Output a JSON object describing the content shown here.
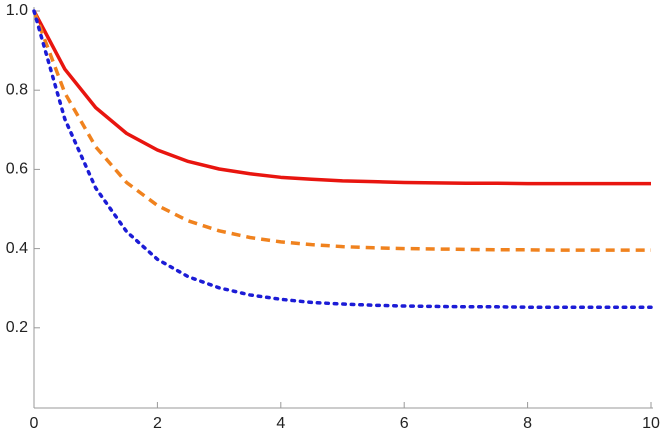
{
  "chart_data": {
    "type": "line",
    "x": [
      0,
      0.5,
      1,
      1.5,
      2,
      2.5,
      3,
      3.5,
      4,
      4.5,
      5,
      5.5,
      6,
      6.5,
      7,
      7.5,
      8,
      8.5,
      9,
      9.5,
      10
    ],
    "series": [
      {
        "color": "#e8150f",
        "linestyle": "solid",
        "values": [
          1.0,
          0.853,
          0.756,
          0.691,
          0.649,
          0.62,
          0.601,
          0.589,
          0.58,
          0.575,
          0.571,
          0.569,
          0.567,
          0.566,
          0.565,
          0.565,
          0.564,
          0.564,
          0.564,
          0.564,
          0.564
        ]
      },
      {
        "color": "#f0821e",
        "linestyle": "dashed",
        "values": [
          1.0,
          0.793,
          0.657,
          0.567,
          0.509,
          0.47,
          0.445,
          0.428,
          0.417,
          0.41,
          0.405,
          0.402,
          0.4,
          0.399,
          0.398,
          0.397,
          0.397,
          0.396,
          0.396,
          0.396,
          0.396
        ]
      },
      {
        "color": "#1c1cd6",
        "linestyle": "dotted",
        "values": [
          1.0,
          0.727,
          0.553,
          0.443,
          0.373,
          0.329,
          0.301,
          0.283,
          0.272,
          0.264,
          0.26,
          0.257,
          0.255,
          0.254,
          0.253,
          0.253,
          0.252,
          0.252,
          0.252,
          0.252,
          0.252
        ]
      }
    ],
    "xlim": [
      0,
      10
    ],
    "xticks": [
      0,
      2,
      4,
      6,
      8,
      10
    ],
    "ylim": [
      0,
      1
    ],
    "yticks": [
      0.2,
      0.4,
      0.6,
      0.8,
      {
        "value": 1,
        "label": "1.0"
      }
    ],
    "grid": false
  }
}
